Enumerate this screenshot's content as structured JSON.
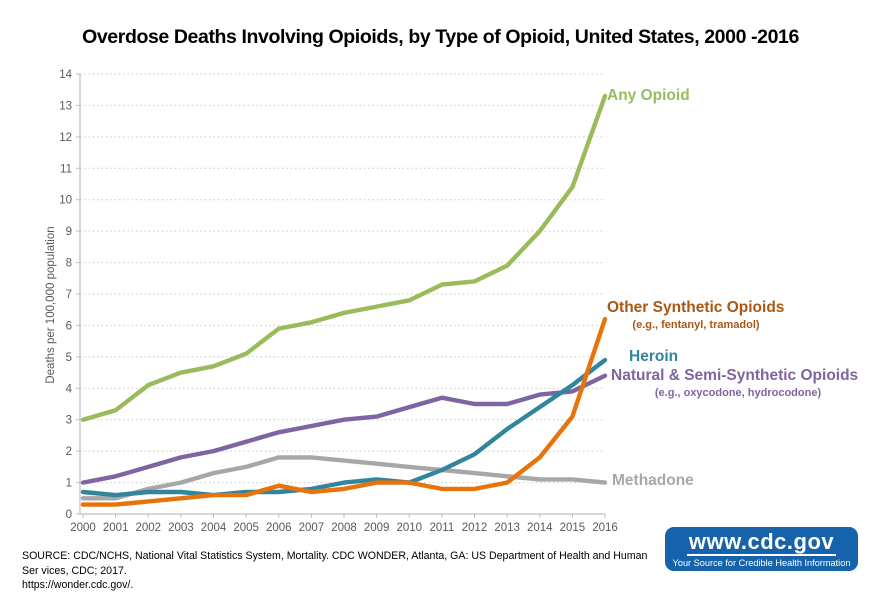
{
  "title": "Overdose Deaths Involving Opioids, by Type of Opioid, United States, 2000 -2016",
  "y_axis_title": "Deaths per 100,000 population",
  "source": {
    "line1": "SOURCE: CDC/NCHS, National Vital Statistics System, Mortality. CDC WONDER, Atlanta, GA: US Department of Health and Human Ser vices, CDC; 2017.",
    "line2": "https://wonder.cdc.gov/."
  },
  "logo": {
    "url_text": "www.cdc.gov",
    "tagline": "Your Source for Credible Health Information",
    "bg_color": "#1663AC"
  },
  "chart_data": {
    "type": "line",
    "title": "Overdose Deaths Involving Opioids, by Type of Opioid, United States, 2000 -2016",
    "xlabel": "",
    "ylabel": "Deaths per 100,000 population",
    "ylim": [
      0,
      14
    ],
    "y_tick_step": 1,
    "grid": "horizontal-dotted",
    "legend_position": "labels-at-line-ends",
    "x": [
      2000,
      2001,
      2002,
      2003,
      2004,
      2005,
      2006,
      2007,
      2008,
      2009,
      2010,
      2011,
      2012,
      2013,
      2014,
      2015,
      2016
    ],
    "draw_order": [
      4,
      3,
      2,
      1,
      0
    ],
    "series": [
      {
        "name": "Any Opioid",
        "slug": "any-opioid",
        "label": "Any Opioid",
        "sublabel": "",
        "line_color": "#9ABB59",
        "label_color": "#9ABB59",
        "values": [
          3.0,
          3.3,
          4.1,
          4.5,
          4.7,
          5.1,
          5.9,
          6.1,
          6.4,
          6.6,
          6.8,
          7.3,
          7.4,
          7.9,
          9.0,
          10.4,
          13.3
        ]
      },
      {
        "name": "Other Synthetic Opioids",
        "slug": "other-synthetic-opioids",
        "label": "Other Synthetic Opioids",
        "sublabel": "(e.g., fentanyl, tramadol)",
        "line_color": "#E8730A",
        "label_color": "#AC5711",
        "values": [
          0.3,
          0.3,
          0.4,
          0.5,
          0.6,
          0.6,
          0.9,
          0.7,
          0.8,
          1.0,
          1.0,
          0.8,
          0.8,
          1.0,
          1.8,
          3.1,
          6.2
        ]
      },
      {
        "name": "Heroin",
        "slug": "heroin",
        "label": "Heroin",
        "sublabel": "",
        "line_color": "#31859C",
        "label_color": "#31859C",
        "values": [
          0.7,
          0.6,
          0.7,
          0.7,
          0.6,
          0.7,
          0.7,
          0.8,
          1.0,
          1.1,
          1.0,
          1.4,
          1.9,
          2.7,
          3.4,
          4.1,
          4.9
        ]
      },
      {
        "name": "Natural & Semi-Synthetic Opioids",
        "slug": "natural-semi-synthetic-opioids",
        "label": "Natural & Semi-Synthetic Opioids",
        "sublabel": "(e.g., oxycodone, hydrocodone)",
        "line_color": "#8064A2",
        "label_color": "#8064A2",
        "values": [
          1.0,
          1.2,
          1.5,
          1.8,
          2.0,
          2.3,
          2.6,
          2.8,
          3.0,
          3.1,
          3.4,
          3.7,
          3.5,
          3.5,
          3.8,
          3.9,
          4.4
        ]
      },
      {
        "name": "Methadone",
        "slug": "methadone",
        "label": "Methadone",
        "sublabel": "",
        "line_color": "#A7A7A7",
        "label_color": "#A7A7A7",
        "values": [
          0.5,
          0.5,
          0.8,
          1.0,
          1.3,
          1.5,
          1.8,
          1.8,
          1.7,
          1.6,
          1.5,
          1.4,
          1.3,
          1.2,
          1.1,
          1.1,
          1.0
        ]
      }
    ]
  }
}
